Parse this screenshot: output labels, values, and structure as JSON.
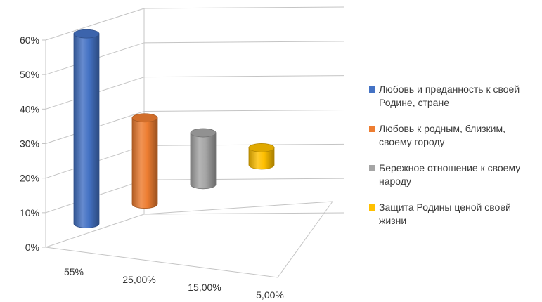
{
  "chart_data": {
    "type": "bar",
    "variant": "3d-cylinder",
    "title": "",
    "xlabel": "",
    "ylabel": "",
    "ylim": [
      0,
      60
    ],
    "yticks": [
      "0%",
      "10%",
      "20%",
      "30%",
      "40%",
      "50%",
      "60%"
    ],
    "grid": true,
    "legend_position": "right",
    "categories": [
      "55%",
      "25,00%",
      "15,00%",
      "5,00%"
    ],
    "values": [
      55,
      25,
      15,
      5
    ],
    "series": [
      {
        "name": "Любовь и преданность к своей Родине, стране",
        "color": "#4472C4",
        "values": [
          55,
          null,
          null,
          null
        ]
      },
      {
        "name": "Любовь к родным, близким, своему городу",
        "color": "#ED7D31",
        "values": [
          null,
          25,
          null,
          null
        ]
      },
      {
        "name": "Бережное отношение к своему народу",
        "color": "#A5A5A5",
        "values": [
          null,
          null,
          15,
          null
        ]
      },
      {
        "name": "Защита Родины ценой своей жизни",
        "color": "#FFC000",
        "values": [
          null,
          null,
          null,
          5
        ]
      }
    ]
  }
}
